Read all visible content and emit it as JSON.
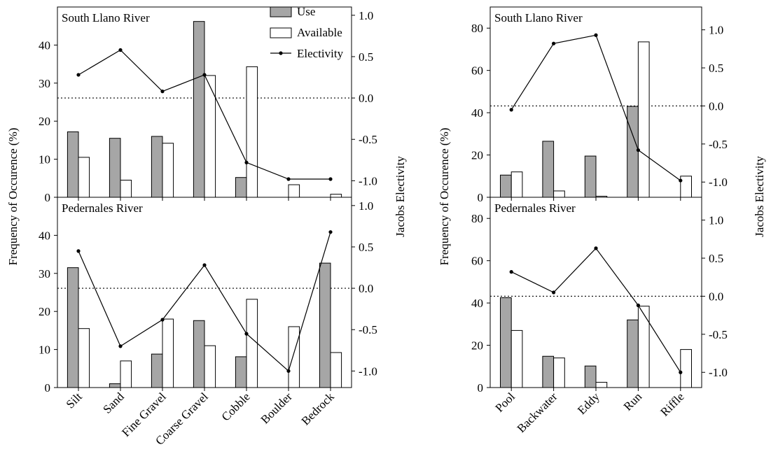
{
  "colors": {
    "use_fill": "#a6a6a6",
    "available_fill": "#ffffff",
    "stroke": "#000000"
  },
  "legend": {
    "use": "Use",
    "available": "Available",
    "electivity": "Electivity"
  },
  "axes": {
    "left_ylabel": "Frequency of Occurence (%)",
    "right_ylabel": "Jacobs Electivity"
  },
  "chart_data": [
    {
      "type": "bar",
      "title": "South Llano River",
      "categories": [
        "Silt",
        "Sand",
        "Fine Gravel",
        "Coarse Gravel",
        "Cobble",
        "Boulder",
        "Bedrock"
      ],
      "series": [
        {
          "name": "Use",
          "values": [
            17.2,
            15.5,
            16.0,
            46.2,
            5.2,
            0.0,
            0.0
          ]
        },
        {
          "name": "Available",
          "values": [
            10.5,
            4.5,
            14.2,
            32.0,
            34.3,
            3.3,
            0.8
          ]
        },
        {
          "name": "Electivity",
          "axis": "right",
          "values": [
            0.28,
            0.58,
            0.08,
            0.28,
            -0.78,
            -0.98,
            -0.98
          ]
        }
      ],
      "ylim": [
        0,
        50
      ],
      "yticks": [
        0,
        10,
        20,
        30,
        40
      ],
      "y2lim": [
        -1.2,
        1.1
      ],
      "y2ticks": [
        -1.0,
        -0.5,
        0.0,
        0.5,
        1.0
      ],
      "reference_line": 0.0,
      "xlabel": "",
      "ylabel": "Frequency of Occurence (%)",
      "y2label": "Jacobs Electivity",
      "legend_position": "top-right"
    },
    {
      "type": "bar",
      "title": "Pedernales River",
      "categories": [
        "Silt",
        "Sand",
        "Fine Gravel",
        "Coarse Gravel",
        "Cobble",
        "Boulder",
        "Bedrock"
      ],
      "series": [
        {
          "name": "Use",
          "values": [
            31.5,
            1.0,
            8.8,
            17.6,
            8.1,
            0.0,
            32.7
          ]
        },
        {
          "name": "Available",
          "values": [
            15.5,
            7.0,
            18.0,
            11.0,
            23.2,
            16.0,
            9.2
          ]
        },
        {
          "name": "Electivity",
          "axis": "right",
          "values": [
            0.45,
            -0.7,
            -0.38,
            0.28,
            -0.55,
            -1.0,
            0.68
          ]
        }
      ],
      "ylim": [
        0,
        50
      ],
      "yticks": [
        0,
        10,
        20,
        30,
        40
      ],
      "y2lim": [
        -1.2,
        1.1
      ],
      "y2ticks": [
        -1.0,
        -0.5,
        0.0,
        0.5,
        1.0
      ],
      "reference_line": 0.0,
      "xlabel": "",
      "ylabel": "Frequency of Occurence (%)",
      "y2label": "Jacobs Electivity"
    },
    {
      "type": "bar",
      "title": "South Llano River",
      "categories": [
        "Pool",
        "Backwater",
        "Eddy",
        "Run",
        "Riffle"
      ],
      "series": [
        {
          "name": "Use",
          "values": [
            10.5,
            26.5,
            19.5,
            43.0,
            0.0
          ]
        },
        {
          "name": "Available",
          "values": [
            12.0,
            3.0,
            0.5,
            73.5,
            10.0
          ]
        },
        {
          "name": "Electivity",
          "axis": "right",
          "values": [
            -0.05,
            0.82,
            0.93,
            -0.58,
            -0.98
          ]
        }
      ],
      "ylim": [
        0,
        90
      ],
      "yticks": [
        0,
        20,
        40,
        60,
        80
      ],
      "y2lim": [
        -1.2,
        1.3
      ],
      "y2ticks": [
        -1.0,
        -0.5,
        0.0,
        0.5,
        1.0
      ],
      "reference_line": 0.0,
      "xlabel": "",
      "ylabel": "Frequency of Occurence (%)",
      "y2label": "Jacobs Electivity"
    },
    {
      "type": "bar",
      "title": "Pedernales River",
      "categories": [
        "Pool",
        "Backwater",
        "Eddy",
        "Run",
        "Riffle"
      ],
      "series": [
        {
          "name": "Use",
          "values": [
            42.5,
            14.8,
            10.2,
            32.0,
            0.0
          ]
        },
        {
          "name": "Available",
          "values": [
            27.0,
            14.0,
            2.5,
            38.5,
            18.0
          ]
        },
        {
          "name": "Electivity",
          "axis": "right",
          "values": [
            0.32,
            0.05,
            0.63,
            -0.12,
            -1.0
          ]
        }
      ],
      "ylim": [
        0,
        90
      ],
      "yticks": [
        0,
        20,
        40,
        60,
        80
      ],
      "y2lim": [
        -1.2,
        1.3
      ],
      "y2ticks": [
        -1.0,
        -0.5,
        0.0,
        0.5,
        1.0
      ],
      "reference_line": 0.0,
      "xlabel": "",
      "ylabel": "Frequency of Occurence (%)",
      "y2label": "Jacobs Electivity"
    }
  ]
}
